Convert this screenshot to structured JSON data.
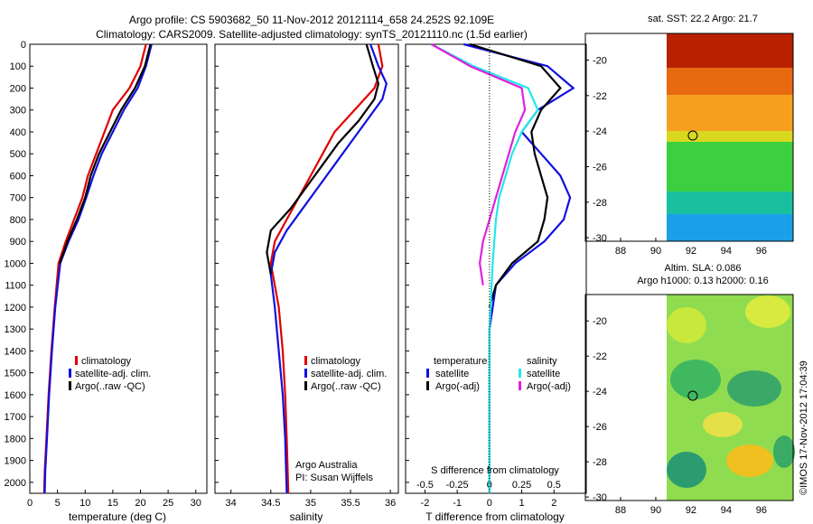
{
  "header": {
    "title_line1": "Argo profile: CS 5903682_50 11-Nov-2012 20121114_658 24.252S 92.109E",
    "title_line2": "Climatology: CARS2009. Satellite-adjusted climatology: synTS_20121110.nc (1.5d earlier)"
  },
  "colors": {
    "climatology": "#e00000",
    "satellite": "#1010e0",
    "argo": "#000000",
    "sat_salinity": "#22e8e8",
    "argo_salinity": "#e020e0"
  },
  "chart_data": [
    {
      "type": "line",
      "name": "temperature-panel",
      "xlabel": "temperature (deg C)",
      "ylabel": "",
      "xlim": [
        0,
        32
      ],
      "ylim": [
        2050,
        0
      ],
      "xticks": [
        0,
        5,
        10,
        15,
        20,
        25,
        30
      ],
      "yticks": [
        0,
        100,
        200,
        300,
        400,
        500,
        600,
        700,
        800,
        900,
        1000,
        1100,
        1200,
        1300,
        1400,
        1500,
        1600,
        1700,
        1800,
        1900,
        2000
      ],
      "legend": [
        "climatology",
        "satellite-adj. clim.",
        "Argo(..raw -QC)"
      ],
      "series": [
        {
          "name": "climatology",
          "color_key": "climatology",
          "points": [
            [
              21,
              0
            ],
            [
              20,
              100
            ],
            [
              18,
              200
            ],
            [
              15,
              300
            ],
            [
              13.5,
              400
            ],
            [
              12,
              500
            ],
            [
              10.5,
              600
            ],
            [
              9.5,
              700
            ],
            [
              8,
              800
            ],
            [
              6.5,
              900
            ],
            [
              5.2,
              1000
            ],
            [
              4.5,
              1200
            ],
            [
              3.9,
              1400
            ],
            [
              3.4,
              1600
            ],
            [
              3,
              1800
            ],
            [
              2.7,
              1950
            ],
            [
              2.6,
              2050
            ]
          ]
        },
        {
          "name": "satellite",
          "color_key": "satellite",
          "points": [
            [
              22,
              0
            ],
            [
              21,
              100
            ],
            [
              19.5,
              200
            ],
            [
              17,
              300
            ],
            [
              15,
              400
            ],
            [
              13,
              500
            ],
            [
              11.5,
              600
            ],
            [
              10.2,
              700
            ],
            [
              8.8,
              800
            ],
            [
              7,
              900
            ],
            [
              5.5,
              1000
            ],
            [
              4.6,
              1200
            ],
            [
              4,
              1400
            ],
            [
              3.5,
              1600
            ],
            [
              3.1,
              1800
            ],
            [
              2.8,
              1950
            ],
            [
              2.7,
              2050
            ]
          ]
        },
        {
          "name": "argo",
          "color_key": "argo",
          "points": [
            [
              21.8,
              0
            ],
            [
              20.8,
              100
            ],
            [
              19,
              200
            ],
            [
              16.5,
              300
            ],
            [
              14.5,
              400
            ],
            [
              12.5,
              500
            ],
            [
              11,
              600
            ],
            [
              10,
              700
            ],
            [
              8.5,
              800
            ],
            [
              6.8,
              900
            ],
            [
              5.4,
              1000
            ]
          ]
        }
      ]
    },
    {
      "type": "line",
      "name": "salinity-panel",
      "xlabel": "salinity",
      "ylabel": "",
      "xlim": [
        33.8,
        36.1
      ],
      "ylim": [
        2050,
        0
      ],
      "xticks": [
        34,
        34.5,
        35,
        35.5,
        36
      ],
      "legend": [
        "climatology",
        "satellite-adj. clim.",
        "Argo(..raw -QC)"
      ],
      "series": [
        {
          "name": "climatology",
          "color_key": "climatology",
          "points": [
            [
              35.85,
              0
            ],
            [
              35.9,
              100
            ],
            [
              35.8,
              200
            ],
            [
              35.55,
              300
            ],
            [
              35.3,
              400
            ],
            [
              35.15,
              500
            ],
            [
              35,
              600
            ],
            [
              34.85,
              700
            ],
            [
              34.7,
              800
            ],
            [
              34.55,
              900
            ],
            [
              34.5,
              1000
            ],
            [
              34.6,
              1200
            ],
            [
              34.65,
              1400
            ],
            [
              34.68,
              1600
            ],
            [
              34.7,
              1800
            ],
            [
              34.72,
              2050
            ]
          ]
        },
        {
          "name": "satellite",
          "color_key": "satellite",
          "points": [
            [
              35.75,
              0
            ],
            [
              35.85,
              100
            ],
            [
              35.95,
              180
            ],
            [
              35.9,
              250
            ],
            [
              35.7,
              350
            ],
            [
              35.5,
              450
            ],
            [
              35.3,
              550
            ],
            [
              35.1,
              650
            ],
            [
              34.9,
              750
            ],
            [
              34.7,
              850
            ],
            [
              34.55,
              950
            ],
            [
              34.5,
              1050
            ],
            [
              34.55,
              1200
            ],
            [
              34.6,
              1400
            ],
            [
              34.65,
              1600
            ],
            [
              34.68,
              1800
            ],
            [
              34.7,
              2050
            ]
          ]
        },
        {
          "name": "argo",
          "color_key": "argo",
          "points": [
            [
              35.7,
              0
            ],
            [
              35.78,
              100
            ],
            [
              35.85,
              180
            ],
            [
              35.8,
              250
            ],
            [
              35.6,
              350
            ],
            [
              35.35,
              450
            ],
            [
              35.15,
              550
            ],
            [
              34.95,
              650
            ],
            [
              34.75,
              750
            ],
            [
              34.5,
              850
            ],
            [
              34.45,
              950
            ],
            [
              34.5,
              1050
            ]
          ]
        }
      ]
    },
    {
      "type": "line",
      "name": "difference-panel",
      "xlabel": "T difference from climatology",
      "top_label": "S difference from climatology",
      "xlim": [
        -2.6,
        3.0
      ],
      "ylim": [
        2050,
        0
      ],
      "xticks": [
        -2,
        -1,
        0,
        1,
        2
      ],
      "top_ticks": [
        "-0.5",
        "-0.25",
        "0",
        "0.25",
        "0.5"
      ],
      "legend_titles": [
        "temperature",
        "salinity"
      ],
      "legend_left": [
        "satellite",
        "Argo(-adj)"
      ],
      "legend_right": [
        "satellite",
        "Argo(-adj)"
      ],
      "series": [
        {
          "name": "T satellite",
          "color_key": "satellite",
          "points": [
            [
              -0.8,
              0
            ],
            [
              1.8,
              100
            ],
            [
              2.6,
              200
            ],
            [
              1.5,
              300
            ],
            [
              1,
              400
            ],
            [
              1.6,
              500
            ],
            [
              2.2,
              600
            ],
            [
              2.5,
              700
            ],
            [
              2.3,
              800
            ],
            [
              1.7,
              900
            ],
            [
              0.8,
              1000
            ],
            [
              0.2,
              1100
            ],
            [
              0,
              1300
            ],
            [
              0,
              2050
            ]
          ]
        },
        {
          "name": "T argo",
          "color_key": "argo",
          "points": [
            [
              -0.6,
              0
            ],
            [
              1.6,
              100
            ],
            [
              2.2,
              200
            ],
            [
              1.6,
              300
            ],
            [
              1.3,
              400
            ],
            [
              1.4,
              500
            ],
            [
              1.6,
              600
            ],
            [
              1.8,
              700
            ],
            [
              1.7,
              800
            ],
            [
              1.5,
              900
            ],
            [
              0.7,
              1000
            ],
            [
              0.2,
              1100
            ],
            [
              0,
              1200
            ]
          ]
        },
        {
          "name": "S satellite",
          "color_key": "sat_salinity",
          "points": [
            [
              -1.8,
              0
            ],
            [
              -0.5,
              100
            ],
            [
              1.2,
              200
            ],
            [
              1.5,
              300
            ],
            [
              1,
              400
            ],
            [
              0.7,
              500
            ],
            [
              0.5,
              600
            ],
            [
              0.3,
              700
            ],
            [
              0.2,
              800
            ],
            [
              0.1,
              1000
            ],
            [
              0,
              1300
            ],
            [
              0,
              2050
            ]
          ]
        },
        {
          "name": "S argo",
          "color_key": "argo_salinity",
          "points": [
            [
              -1.8,
              0
            ],
            [
              -0.6,
              100
            ],
            [
              1,
              200
            ],
            [
              1.1,
              300
            ],
            [
              0.8,
              400
            ],
            [
              0.6,
              500
            ],
            [
              0.4,
              600
            ],
            [
              0.2,
              700
            ],
            [
              0,
              800
            ],
            [
              -0.2,
              900
            ],
            [
              -0.3,
              1000
            ],
            [
              -0.2,
              1100
            ]
          ]
        }
      ]
    },
    {
      "type": "heatmap",
      "name": "sst-map",
      "title": "sat. SST: 22.2 Argo: 21.7",
      "xticks": [
        88,
        90,
        92,
        94,
        96
      ],
      "yticks": [
        -20,
        -22,
        -24,
        -26,
        -28,
        -30
      ],
      "xlim": [
        86,
        97.8
      ],
      "ylim": [
        -30.2,
        -18.5
      ],
      "marker": [
        92.1,
        -24.25
      ]
    },
    {
      "type": "heatmap",
      "name": "sla-map",
      "title_line1": "Altim. SLA: 0.086",
      "title_line2": "Argo h1000: 0.13 h2000: 0.16",
      "xticks": [
        88,
        90,
        92,
        94,
        96
      ],
      "yticks": [
        -20,
        -22,
        -24,
        -26,
        -28,
        -30
      ],
      "xlim": [
        86,
        97.8
      ],
      "ylim": [
        -30.2,
        -18.5
      ],
      "marker": [
        92.1,
        -24.25
      ]
    }
  ],
  "panels": {
    "temperature": {
      "legend_clim": "climatology",
      "legend_sat": "satellite-adj. clim.",
      "legend_argo": "Argo(..raw -QC)"
    },
    "salinity": {
      "legend_clim": "climatology",
      "legend_sat": "satellite-adj. clim.",
      "legend_argo": "Argo(..raw -QC)",
      "credit1": "Argo Australia",
      "credit2": "PI: Susan Wijffels"
    },
    "difference": {
      "title_temp": "temperature",
      "title_sal": "salinity",
      "t_sat": "satellite",
      "t_argo": "Argo(-adj)",
      "s_sat": "satellite",
      "s_argo": "Argo(-adj)"
    }
  },
  "footer": {
    "stamp": "©IMOS 17-Nov-2012 17:04:39"
  }
}
